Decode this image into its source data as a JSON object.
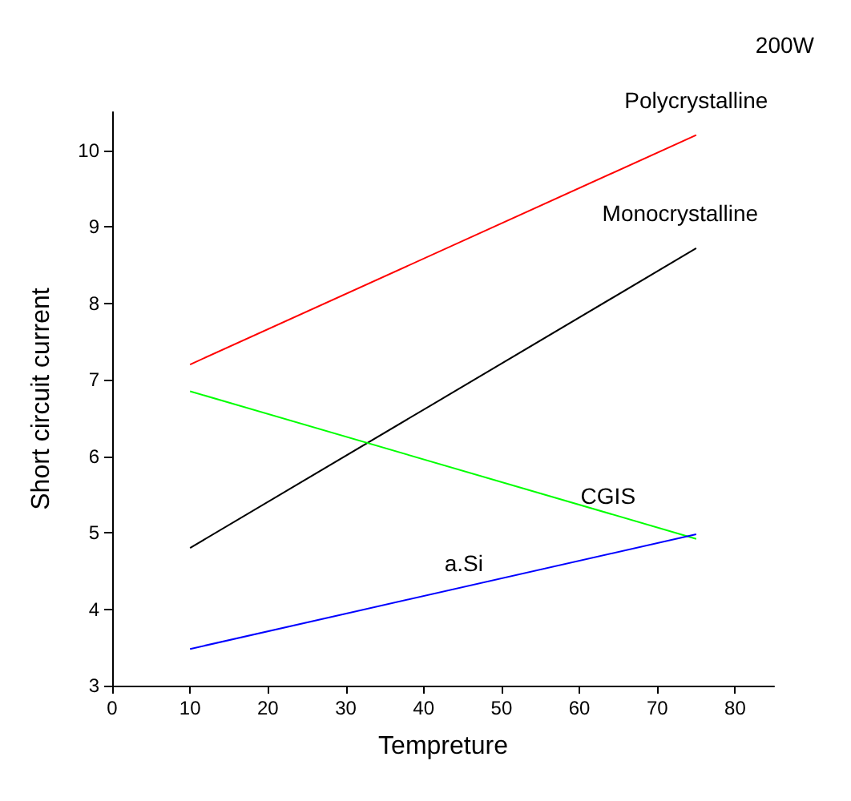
{
  "chart_data": {
    "type": "line",
    "annotations": [
      "200W"
    ],
    "xlabel": "Tempreture",
    "ylabel": "Short circuit current",
    "x": [
      10,
      75
    ],
    "series": [
      {
        "name": "Polycrystalline",
        "color": "#ff0000",
        "values": [
          7.2,
          10.2
        ]
      },
      {
        "name": "Monocrystalline",
        "color": "#000000",
        "values": [
          4.8,
          8.72
        ]
      },
      {
        "name": "CGIS",
        "color": "#00ff00",
        "values": [
          6.85,
          4.92
        ]
      },
      {
        "name": "a.Si",
        "color": "#0000ff",
        "values": [
          3.48,
          4.98
        ]
      }
    ],
    "xlim": [
      0,
      85
    ],
    "xticks": [
      0,
      10,
      20,
      30,
      40,
      50,
      60,
      70,
      80
    ],
    "ylim": [
      3,
      10.5
    ],
    "yticks": [
      3,
      4,
      5,
      6,
      7,
      8,
      9,
      10
    ],
    "grid": false,
    "legend": false,
    "marker": "none",
    "line_style": "solid"
  }
}
